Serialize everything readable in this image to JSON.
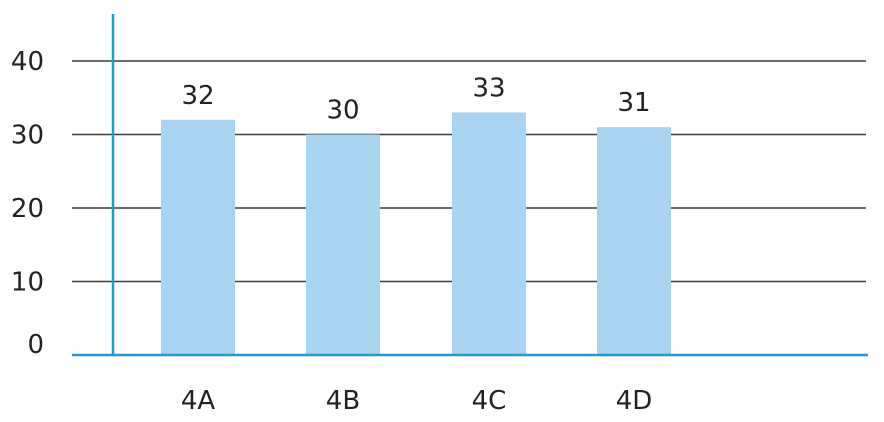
{
  "chart_data": {
    "type": "bar",
    "categories": [
      "4A",
      "4B",
      "4C",
      "4D"
    ],
    "values": [
      32,
      30,
      33,
      31
    ],
    "data_labels": [
      "32",
      "30",
      "33",
      "31"
    ],
    "y_ticks": [
      "0",
      "10",
      "20",
      "30",
      "40"
    ],
    "ylim": [
      0,
      40
    ],
    "grid": true,
    "bar_color": "#a8d4f2",
    "axis_color": "#1e9bd7",
    "grid_color": "#3c3c3c"
  }
}
